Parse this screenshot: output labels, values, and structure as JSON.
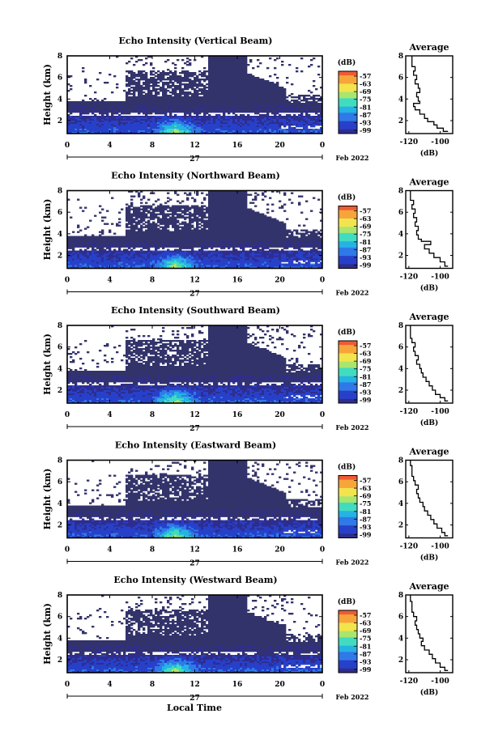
{
  "figure": {
    "xlabel": "Local Time",
    "month_label": "Feb 2022",
    "day_label": "27",
    "avg_title": "Average",
    "avg_xlabel": "(dB)",
    "cb_unit": "(dB)",
    "colors": {
      "no_data": "#ffffff",
      "background": "#33336b",
      "scale": [
        "#2e2d8f",
        "#2740c9",
        "#2f79e8",
        "#25b3e3",
        "#41dcc0",
        "#a9e66d",
        "#f2e44c",
        "#f7a43b",
        "#ee5a32"
      ]
    }
  },
  "chart_data": [
    {
      "type": "heatmap",
      "title": "Echo Intensity (Vertical Beam)",
      "ylabel": "Height (km)",
      "x_ticks": [
        "0",
        "4",
        "8",
        "12",
        "16",
        "20",
        "0"
      ],
      "x_range_hours": [
        0,
        24
      ],
      "y_ticks": [
        "2",
        "4",
        "6",
        "8"
      ],
      "y_range_km": [
        0.8,
        8
      ],
      "colorbar": {
        "labels": [
          "-57",
          "-63",
          "-69",
          "-75",
          "-81",
          "-87",
          "-93",
          "-99"
        ]
      },
      "average": {
        "xlabel": "(dB)",
        "x_ticks": [
          "-120",
          "-100"
        ],
        "x_range": [
          -122,
          -92
        ],
        "y_range_km": [
          0.8,
          8
        ],
        "y_ticks": [
          "2",
          "4",
          "6",
          "8"
        ],
        "profile": [
          [
            -95,
            1.0
          ],
          [
            -98,
            1.3
          ],
          [
            -102,
            1.6
          ],
          [
            -104,
            1.9
          ],
          [
            -108,
            2.2
          ],
          [
            -110,
            2.6
          ],
          [
            -113,
            3.0
          ],
          [
            -116,
            3.3
          ],
          [
            -117,
            3.6
          ],
          [
            -113,
            3.8
          ],
          [
            -114,
            4.2
          ],
          [
            -115,
            4.6
          ],
          [
            -113,
            5.0
          ],
          [
            -114,
            5.4
          ],
          [
            -116,
            5.8
          ],
          [
            -115,
            6.2
          ],
          [
            -117,
            6.6
          ],
          [
            -116,
            7.0
          ],
          [
            -118,
            7.5
          ],
          [
            -118,
            8.0
          ]
        ]
      }
    },
    {
      "type": "heatmap",
      "title": "Echo Intensity (Northward Beam)",
      "ylabel": "Height (km)",
      "x_ticks": [
        "0",
        "4",
        "8",
        "12",
        "16",
        "20",
        "0"
      ],
      "x_range_hours": [
        0,
        24
      ],
      "y_ticks": [
        "2",
        "4",
        "6",
        "8"
      ],
      "y_range_km": [
        0.8,
        8
      ],
      "colorbar": {
        "labels": [
          "-57",
          "-63",
          "-69",
          "-75",
          "-81",
          "-87",
          "-93",
          "-99"
        ]
      },
      "average": {
        "xlabel": "(dB)",
        "x_ticks": [
          "-120",
          "-100"
        ],
        "x_range": [
          -122,
          -92
        ],
        "y_range_km": [
          0.8,
          8
        ],
        "y_ticks": [
          "2",
          "4",
          "6",
          "8"
        ],
        "profile": [
          [
            -95,
            1.0
          ],
          [
            -97,
            1.4
          ],
          [
            -100,
            1.8
          ],
          [
            -104,
            2.2
          ],
          [
            -107,
            2.6
          ],
          [
            -110,
            3.0
          ],
          [
            -106,
            3.3
          ],
          [
            -112,
            3.5
          ],
          [
            -114,
            3.9
          ],
          [
            -115,
            4.3
          ],
          [
            -114,
            4.7
          ],
          [
            -116,
            5.1
          ],
          [
            -115,
            5.5
          ],
          [
            -117,
            5.9
          ],
          [
            -116,
            6.3
          ],
          [
            -118,
            6.7
          ],
          [
            -117,
            7.1
          ],
          [
            -119,
            7.6
          ],
          [
            -119,
            8.0
          ]
        ]
      }
    },
    {
      "type": "heatmap",
      "title": "Echo Intensity (Southward Beam)",
      "ylabel": "Height (km)",
      "x_ticks": [
        "0",
        "4",
        "8",
        "12",
        "16",
        "20",
        "0"
      ],
      "x_range_hours": [
        0,
        24
      ],
      "y_ticks": [
        "2",
        "4",
        "6",
        "8"
      ],
      "y_range_km": [
        0.8,
        8
      ],
      "colorbar": {
        "labels": [
          "-57",
          "-63",
          "-69",
          "-75",
          "-81",
          "-87",
          "-93",
          "-99"
        ]
      },
      "average": {
        "xlabel": "(dB)",
        "x_ticks": [
          "-120",
          "-100"
        ],
        "x_range": [
          -122,
          -92
        ],
        "y_range_km": [
          0.8,
          8
        ],
        "y_ticks": [
          "2",
          "4",
          "6",
          "8"
        ],
        "profile": [
          [
            -95,
            1.0
          ],
          [
            -97,
            1.3
          ],
          [
            -100,
            1.6
          ],
          [
            -103,
            2.0
          ],
          [
            -105,
            2.4
          ],
          [
            -107,
            2.8
          ],
          [
            -109,
            3.2
          ],
          [
            -111,
            3.6
          ],
          [
            -112,
            4.0
          ],
          [
            -113,
            4.4
          ],
          [
            -115,
            4.8
          ],
          [
            -114,
            5.2
          ],
          [
            -116,
            5.6
          ],
          [
            -117,
            6.0
          ],
          [
            -116,
            6.4
          ],
          [
            -118,
            6.8
          ],
          [
            -119,
            7.3
          ],
          [
            -119,
            8.0
          ]
        ]
      }
    },
    {
      "type": "heatmap",
      "title": "Echo Intensity (Eastward Beam)",
      "ylabel": "Height (km)",
      "x_ticks": [
        "0",
        "4",
        "8",
        "12",
        "16",
        "20",
        "0"
      ],
      "x_range_hours": [
        0,
        24
      ],
      "y_ticks": [
        "2",
        "4",
        "6",
        "8"
      ],
      "y_range_km": [
        0.8,
        8
      ],
      "colorbar": {
        "labels": [
          "-57",
          "-63",
          "-69",
          "-75",
          "-81",
          "-87",
          "-93",
          "-99"
        ]
      },
      "average": {
        "xlabel": "(dB)",
        "x_ticks": [
          "-120",
          "-100"
        ],
        "x_range": [
          -122,
          -92
        ],
        "y_range_km": [
          0.8,
          8
        ],
        "y_ticks": [
          "2",
          "4",
          "6",
          "8"
        ],
        "profile": [
          [
            -95,
            1.0
          ],
          [
            -97,
            1.3
          ],
          [
            -99,
            1.7
          ],
          [
            -102,
            2.1
          ],
          [
            -104,
            2.5
          ],
          [
            -106,
            2.9
          ],
          [
            -108,
            3.3
          ],
          [
            -110,
            3.7
          ],
          [
            -111,
            4.1
          ],
          [
            -113,
            4.5
          ],
          [
            -114,
            4.9
          ],
          [
            -115,
            5.3
          ],
          [
            -114,
            5.7
          ],
          [
            -116,
            6.1
          ],
          [
            -117,
            6.5
          ],
          [
            -118,
            7.0
          ],
          [
            -118,
            7.5
          ],
          [
            -119,
            8.0
          ]
        ]
      }
    },
    {
      "type": "heatmap",
      "title": "Echo Intensity (Westward Beam)",
      "ylabel": "Height (km)",
      "x_ticks": [
        "0",
        "4",
        "8",
        "12",
        "16",
        "20",
        "0"
      ],
      "x_range_hours": [
        0,
        24
      ],
      "y_ticks": [
        "2",
        "4",
        "6",
        "8"
      ],
      "y_range_km": [
        0.8,
        8
      ],
      "colorbar": {
        "labels": [
          "-57",
          "-63",
          "-69",
          "-75",
          "-81",
          "-87",
          "-93",
          "-99"
        ]
      },
      "average": {
        "xlabel": "(dB)",
        "x_ticks": [
          "-120",
          "-100"
        ],
        "x_range": [
          -122,
          -92
        ],
        "y_range_km": [
          0.8,
          8
        ],
        "y_ticks": [
          "2",
          "4",
          "6",
          "8"
        ],
        "profile": [
          [
            -95,
            1.0
          ],
          [
            -97,
            1.3
          ],
          [
            -100,
            1.7
          ],
          [
            -103,
            2.1
          ],
          [
            -105,
            2.5
          ],
          [
            -107,
            2.9
          ],
          [
            -110,
            3.3
          ],
          [
            -112,
            3.7
          ],
          [
            -111,
            4.0
          ],
          [
            -113,
            4.4
          ],
          [
            -114,
            4.8
          ],
          [
            -115,
            5.2
          ],
          [
            -116,
            5.6
          ],
          [
            -115,
            6.0
          ],
          [
            -117,
            6.4
          ],
          [
            -118,
            6.9
          ],
          [
            -118,
            7.4
          ],
          [
            -119,
            8.0
          ]
        ]
      }
    }
  ]
}
